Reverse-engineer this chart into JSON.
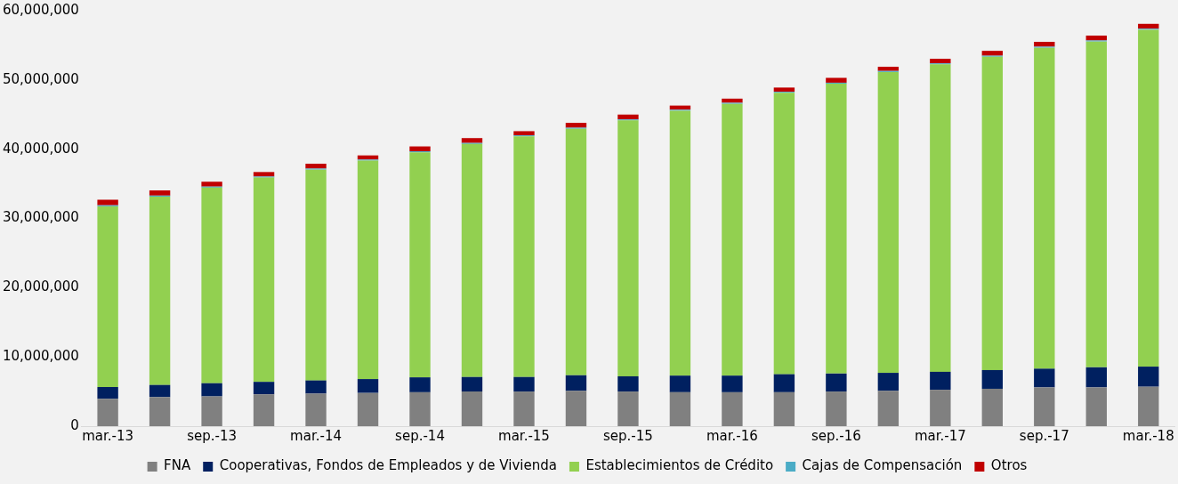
{
  "chart_data": {
    "type": "bar",
    "stacked": true,
    "legend": "bottom",
    "grid": false,
    "categories": [
      "mar.-13",
      null,
      "sep.-13",
      null,
      "mar.-14",
      null,
      "sep.-14",
      null,
      "mar.-15",
      null,
      "sep.-15",
      null,
      "mar.-16",
      null,
      "sep.-16",
      null,
      "mar.-17",
      null,
      "sep.-17",
      null,
      "mar.-18"
    ],
    "ylim": [
      0,
      60000000
    ],
    "yticks": [
      {
        "value": 0,
        "label": "0"
      },
      {
        "value": 10000000,
        "label": "10,000,000"
      },
      {
        "value": 20000000,
        "label": "20,000,000"
      },
      {
        "value": 30000000,
        "label": "30,000,000"
      },
      {
        "value": 40000000,
        "label": "40,000,000"
      },
      {
        "value": 50000000,
        "label": "50,000,000"
      },
      {
        "value": 60000000,
        "label": "60,000,000"
      }
    ],
    "series": [
      {
        "name": "FNA",
        "color": "#808080",
        "values": [
          3950000,
          4200000,
          4300000,
          4600000,
          4700000,
          4800000,
          4900000,
          5000000,
          5000000,
          5100000,
          5000000,
          4900000,
          4900000,
          4900000,
          5000000,
          5100000,
          5250000,
          5400000,
          5600000,
          5600000,
          5700000
        ]
      },
      {
        "name": "Cooperativas, Fondos de Empleados y de Vivienda",
        "color": "#002060",
        "values": [
          1700000,
          1750000,
          1900000,
          1800000,
          1900000,
          2000000,
          2150000,
          2100000,
          2100000,
          2250000,
          2200000,
          2400000,
          2400000,
          2600000,
          2600000,
          2600000,
          2600000,
          2700000,
          2700000,
          2900000,
          2900000
        ]
      },
      {
        "name": "Establecimientos de Crédito",
        "color": "#92d050",
        "values": [
          26100000,
          27200000,
          28250000,
          29500000,
          30450000,
          31550000,
          32500000,
          33650000,
          34750000,
          35600000,
          36950000,
          38250000,
          39250000,
          40650000,
          41850000,
          43450000,
          44400000,
          45250000,
          46350000,
          47050000,
          48650000
        ]
      },
      {
        "name": "Cajas de Compensación",
        "color": "#4bacc6",
        "values": [
          150000,
          150000,
          150000,
          150000,
          150000,
          150000,
          150000,
          150000,
          150000,
          150000,
          150000,
          150000,
          150000,
          150000,
          150000,
          150000,
          150000,
          150000,
          150000,
          150000,
          150000
        ]
      },
      {
        "name": "Otros",
        "color": "#c00000",
        "values": [
          800000,
          750000,
          700000,
          650000,
          700000,
          600000,
          700000,
          700000,
          600000,
          700000,
          700000,
          600000,
          600000,
          600000,
          700000,
          600000,
          650000,
          700000,
          700000,
          700000,
          700000
        ]
      }
    ]
  }
}
